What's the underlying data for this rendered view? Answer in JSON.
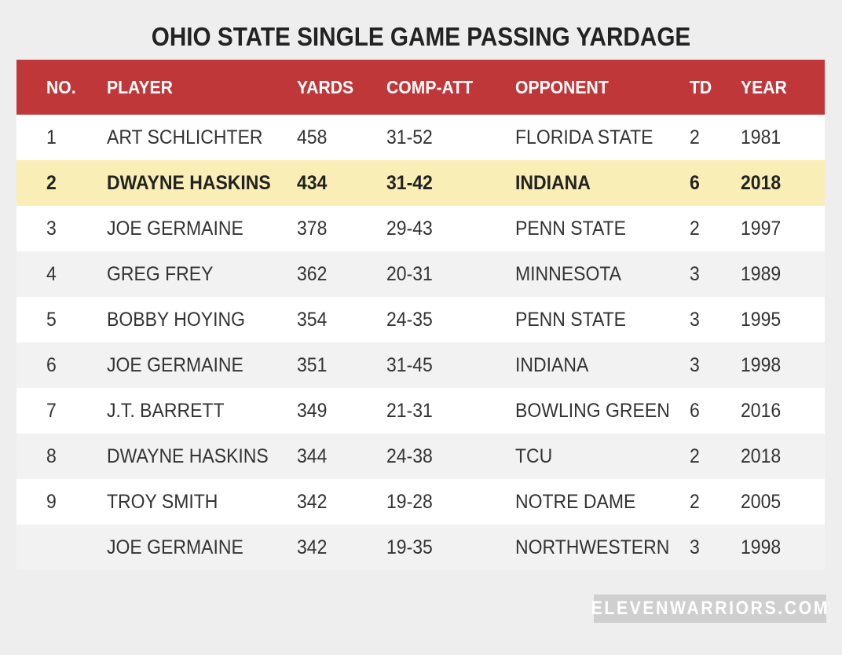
{
  "title": "OHIO STATE SINGLE GAME PASSING YARDAGE",
  "columns": {
    "no": "NO.",
    "player": "PLAYER",
    "yards": "YARDS",
    "comp_att": "COMP-ATT",
    "opponent": "OPPONENT",
    "td": "TD",
    "year": "YEAR"
  },
  "rows": [
    {
      "no": "1",
      "player": "ART SCHLICHTER",
      "yards": "458",
      "comp_att": "31-52",
      "opponent": "FLORIDA STATE",
      "td": "2",
      "year": "1981"
    },
    {
      "no": "2",
      "player": "DWAYNE HASKINS",
      "yards": "434",
      "comp_att": "31-42",
      "opponent": "INDIANA",
      "td": "6",
      "year": "2018"
    },
    {
      "no": "3",
      "player": "JOE GERMAINE",
      "yards": "378",
      "comp_att": "29-43",
      "opponent": "PENN STATE",
      "td": "2",
      "year": "1997"
    },
    {
      "no": "4",
      "player": "GREG FREY",
      "yards": "362",
      "comp_att": "20-31",
      "opponent": "MINNESOTA",
      "td": "3",
      "year": "1989"
    },
    {
      "no": "5",
      "player": "BOBBY HOYING",
      "yards": "354",
      "comp_att": "24-35",
      "opponent": "PENN STATE",
      "td": "3",
      "year": "1995"
    },
    {
      "no": "6",
      "player": "JOE GERMAINE",
      "yards": "351",
      "comp_att": "31-45",
      "opponent": "INDIANA",
      "td": "3",
      "year": "1998"
    },
    {
      "no": "7",
      "player": "J.T. BARRETT",
      "yards": "349",
      "comp_att": "21-31",
      "opponent": "BOWLING GREEN",
      "td": "6",
      "year": "2016"
    },
    {
      "no": "8",
      "player": "DWAYNE HASKINS",
      "yards": "344",
      "comp_att": "24-38",
      "opponent": "TCU",
      "td": "2",
      "year": "2018"
    },
    {
      "no": "9",
      "player": "TROY SMITH",
      "yards": "342",
      "comp_att": "19-28",
      "opponent": "NOTRE DAME",
      "td": "2",
      "year": "2005"
    },
    {
      "no": "",
      "player": "JOE GERMAINE",
      "yards": "342",
      "comp_att": "19-35",
      "opponent": "NORTHWESTERN",
      "td": "3",
      "year": "1998"
    }
  ],
  "watermark": "ELEVENWARRIORS.COM",
  "colors": {
    "header_bg": "#c0373a",
    "highlight_bg": "#f9eeb5",
    "page_bg": "#eeeeee"
  }
}
